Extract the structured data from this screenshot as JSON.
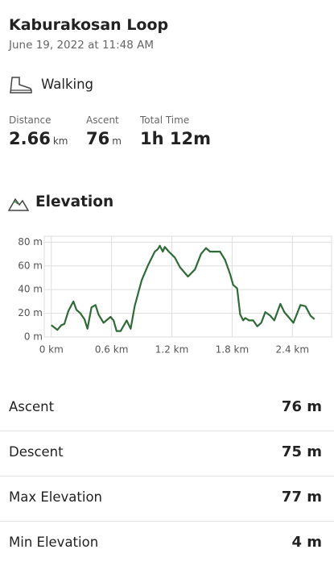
{
  "header": {
    "title": "Kaburakosan Loop",
    "subtitle": "June 19, 2022 at 11:48 AM"
  },
  "activity": "Walking",
  "stats": [
    {
      "label": "Distance",
      "value": "2.66",
      "unit": "km"
    },
    {
      "label": "Ascent",
      "value": "76",
      "unit": "m"
    },
    {
      "label": "Total Time",
      "value": "1h 12m"
    }
  ],
  "chart_data": {
    "type": "line",
    "title": "Elevation",
    "color": "#2e6b36",
    "grid": true,
    "x": [
      0,
      0.06,
      0.1,
      0.13,
      0.17,
      0.22,
      0.25,
      0.29,
      0.33,
      0.36,
      0.4,
      0.44,
      0.47,
      0.52,
      0.59,
      0.62,
      0.65,
      0.69,
      0.73,
      0.75,
      0.79,
      0.83,
      0.9,
      0.96,
      1.03,
      1.06,
      1.08,
      1.11,
      1.13,
      1.17,
      1.23,
      1.28,
      1.36,
      1.43,
      1.49,
      1.54,
      1.58,
      1.68,
      1.73,
      1.78,
      1.81,
      1.85,
      1.88,
      1.91,
      1.93,
      1.97,
      2.01,
      2.05,
      2.09,
      2.13,
      2.18,
      2.22,
      2.28,
      2.32,
      2.36,
      2.41,
      2.48,
      2.53,
      2.58,
      2.62
    ],
    "values": [
      10,
      6,
      10,
      11,
      22,
      30,
      23,
      20,
      15,
      7,
      25,
      27,
      19,
      12,
      17,
      14,
      5,
      5,
      11,
      14,
      7,
      26,
      48,
      60,
      72,
      74,
      77,
      72,
      76,
      72,
      67,
      59,
      51,
      57,
      70,
      75,
      72,
      72,
      65,
      53,
      44,
      41,
      19,
      14,
      16,
      14,
      14,
      9,
      12,
      21,
      18,
      14,
      28,
      21,
      17,
      12,
      27,
      26,
      18,
      15
    ],
    "xlim": [
      -0.07,
      2.79
    ],
    "ylim": [
      0,
      85
    ],
    "xticks": [
      {
        "value": 0,
        "label": "0 km"
      },
      {
        "value": 0.6,
        "label": "0.6 km"
      },
      {
        "value": 1.2,
        "label": "1.2 km"
      },
      {
        "value": 1.8,
        "label": "1.8 km"
      },
      {
        "value": 2.4,
        "label": "2.4 km"
      }
    ],
    "yticks": [
      {
        "value": 0,
        "label": "0 m"
      },
      {
        "value": 20,
        "label": "20 m"
      },
      {
        "value": 40,
        "label": "40 m"
      },
      {
        "value": 60,
        "label": "60 m"
      },
      {
        "value": 80,
        "label": "80 m"
      }
    ]
  },
  "summary": [
    {
      "label": "Ascent",
      "value": "76 m"
    },
    {
      "label": "Descent",
      "value": "75 m"
    },
    {
      "label": "Max Elevation",
      "value": "77 m"
    },
    {
      "label": "Min Elevation",
      "value": "4 m"
    }
  ]
}
